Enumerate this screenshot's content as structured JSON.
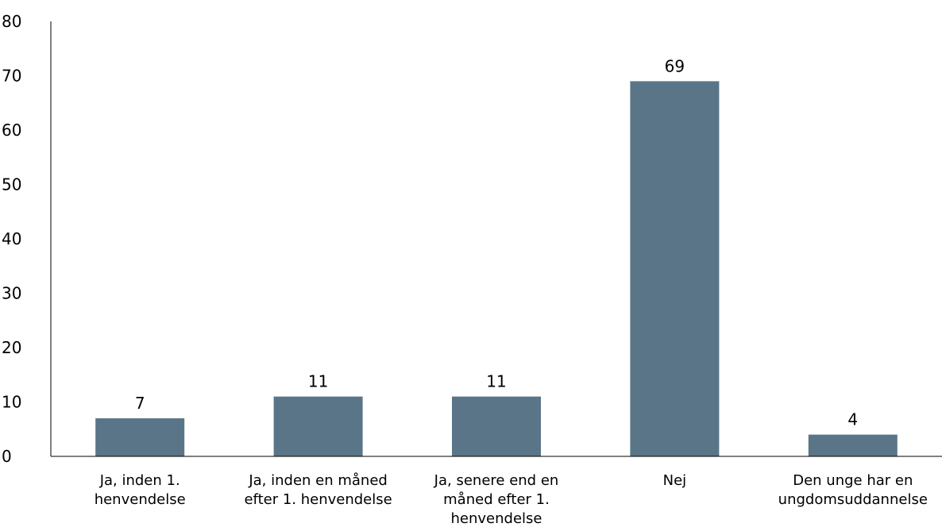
{
  "chart_data": {
    "type": "bar",
    "title": "",
    "xlabel": "",
    "ylabel": "",
    "categories": [
      [
        "Ja, inden 1.",
        "henvendelse"
      ],
      [
        "Ja, inden en måned",
        "efter 1. henvendelse"
      ],
      [
        "Ja, senere end en",
        "måned efter 1.",
        "henvendelse"
      ],
      [
        "Nej"
      ],
      [
        "Den unge har en",
        "ungdomsuddannelse"
      ]
    ],
    "values": [
      7,
      11,
      11,
      69,
      4
    ],
    "data_labels": [
      "7",
      "11",
      "11",
      "69",
      "4"
    ],
    "ylim": [
      0,
      80
    ],
    "yticks": [
      0,
      10,
      20,
      30,
      40,
      50,
      60,
      70,
      80
    ],
    "grid": false,
    "legend": "none",
    "bar_color": "#5a7587"
  }
}
